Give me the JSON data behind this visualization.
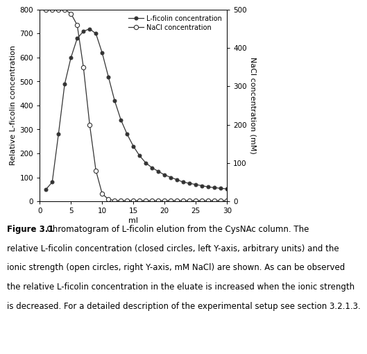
{
  "title": "",
  "xlabel": "ml",
  "ylabel_left": "Relative L-ficolin concentration",
  "ylabel_right": "NaCl concentration (mM)",
  "xlim": [
    0,
    30
  ],
  "ylim_left": [
    0,
    800
  ],
  "ylim_right": [
    0,
    500
  ],
  "xticks": [
    0,
    5,
    10,
    15,
    20,
    25,
    30
  ],
  "yticks_left": [
    0,
    100,
    200,
    300,
    400,
    500,
    600,
    700,
    800
  ],
  "yticks_right": [
    0,
    100,
    200,
    300,
    400,
    500
  ],
  "legend_labels": [
    "L-ficolin concentration",
    "NaCl concentration"
  ],
  "ficolin_x": [
    1,
    2,
    3,
    4,
    5,
    6,
    7,
    8,
    9,
    10,
    11,
    12,
    13,
    14,
    15,
    16,
    17,
    18,
    19,
    20,
    21,
    22,
    23,
    24,
    25,
    26,
    27,
    28,
    29,
    30
  ],
  "ficolin_y": [
    50,
    80,
    280,
    490,
    600,
    680,
    710,
    720,
    700,
    620,
    520,
    420,
    340,
    280,
    230,
    190,
    160,
    140,
    125,
    110,
    100,
    90,
    80,
    75,
    70,
    65,
    60,
    57,
    54,
    52
  ],
  "nacl_x": [
    1,
    2,
    3,
    4,
    5,
    6,
    7,
    8,
    9,
    10,
    11,
    12,
    13,
    14,
    15,
    16,
    17,
    18,
    19,
    20,
    21,
    22,
    23,
    24,
    25,
    26,
    27,
    28,
    29,
    30
  ],
  "nacl_y": [
    500,
    500,
    500,
    500,
    490,
    460,
    350,
    200,
    80,
    20,
    5,
    2,
    2,
    2,
    2,
    2,
    2,
    2,
    2,
    2,
    2,
    2,
    2,
    2,
    2,
    2,
    2,
    2,
    2,
    2
  ],
  "caption_bold": "Figure 3.1",
  "caption_dot": ".",
  "caption_normal": " Chromatogram of L-ficolin elution from the CysNAc column. The relative L-ficolin concentration (closed circles, left Y-axis, arbitrary units) and the ionic strength (open circles, right Y-axis, mM NaCl) are shown. As can be observed the relative L-ficolin concentration in the eluate is increased when the ionic strength is decreased. For a detailed description of the experimental setup see section 3.2.1.3.",
  "background_color": "#ffffff",
  "line_color": "#333333",
  "marker_color_filled": "#333333",
  "marker_color_open": "#ffffff",
  "fontsize_axis_label": 8,
  "fontsize_tick": 7.5,
  "fontsize_legend": 7,
  "fontsize_caption": 8.5
}
